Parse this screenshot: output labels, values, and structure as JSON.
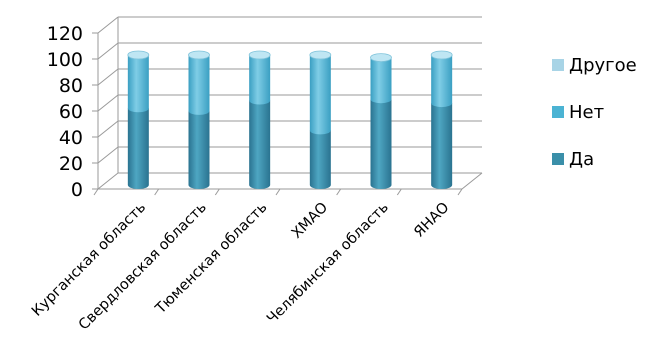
{
  "chart_data": {
    "type": "bar",
    "stacked": true,
    "style": "3d-cylinder",
    "categories": [
      "Курганская область",
      "Свердловская область",
      "Тюменская область",
      "ХМАО",
      "Челябинская область",
      "ЯНАО"
    ],
    "series": [
      {
        "name": "Да",
        "values": [
          59,
          57,
          65,
          42,
          66,
          63
        ],
        "color": "#3a8fa9"
      },
      {
        "name": "Нет",
        "values": [
          41,
          43,
          35,
          58,
          32,
          37
        ],
        "color": "#4bb3d3"
      },
      {
        "name": "Другое",
        "values": [
          0,
          0,
          0,
          0,
          0,
          0
        ],
        "color": "#a8d4e6"
      }
    ],
    "yticks": [
      "0",
      "20",
      "40",
      "60",
      "80",
      "100",
      "120"
    ],
    "ylim": [
      0,
      120
    ],
    "grid": true,
    "legend": {
      "position": "right",
      "order": [
        "Другое",
        "Нет",
        "Да"
      ]
    }
  }
}
